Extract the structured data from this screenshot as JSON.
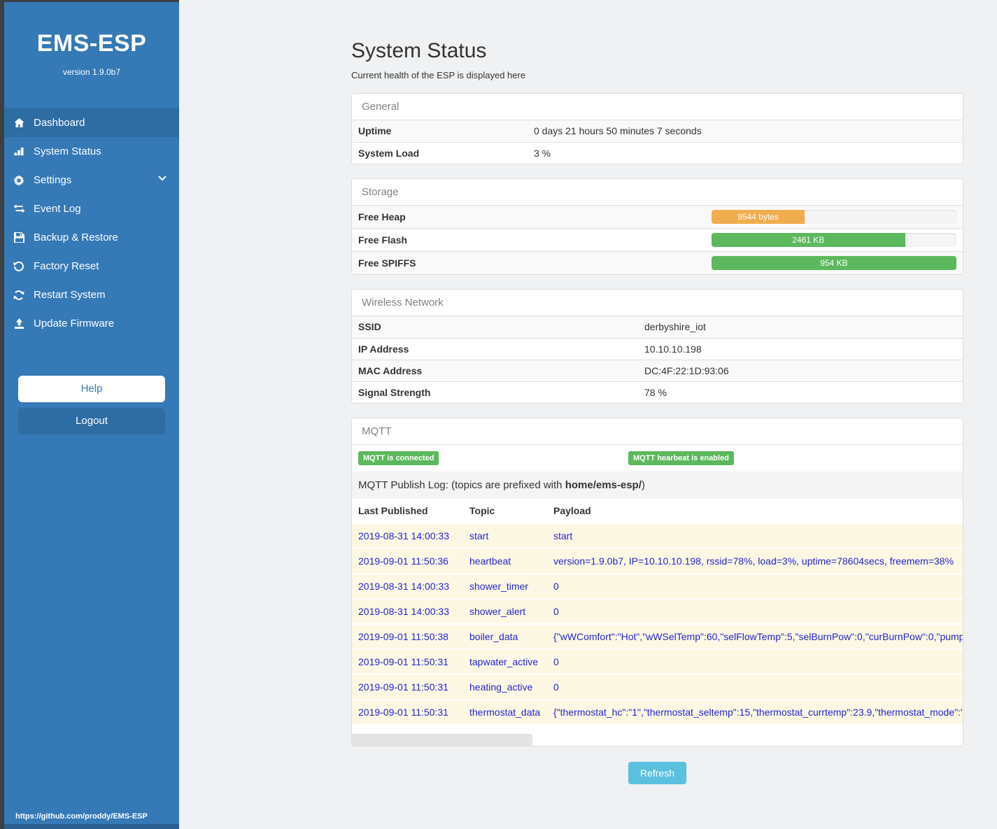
{
  "colors": {
    "sidebar_blue": "#3579b6",
    "active_item_blue": "#2d6da4",
    "green": "#5cb85c",
    "orange": "#f0ad4e",
    "refresh_blue": "#5bc0de",
    "log_row_cream": "#fcf8e3",
    "log_text_blue": "#2525cf"
  },
  "sidebar": {
    "brand": "EMS-ESP",
    "version": "version 1.9.0b7",
    "items": [
      {
        "label": "Dashboard",
        "icon": "home-icon",
        "active": true
      },
      {
        "label": "System Status",
        "icon": "system-status-icon",
        "active": false
      },
      {
        "label": "Settings",
        "icon": "gear-icon",
        "active": false,
        "has_chevron": true
      },
      {
        "label": "Event Log",
        "icon": "exchange-arrows-icon",
        "active": false
      },
      {
        "label": "Backup & Restore",
        "icon": "save-icon",
        "active": false
      },
      {
        "label": "Factory Reset",
        "icon": "rotate-left-icon",
        "active": false
      },
      {
        "label": "Restart System",
        "icon": "refresh-icon",
        "active": false
      },
      {
        "label": "Update Firmware",
        "icon": "upload-icon",
        "active": false
      }
    ],
    "help_label": "Help",
    "logout_label": "Logout",
    "footer_url": "https://github.com/proddy/EMS-ESP"
  },
  "header": {
    "title": "System Status",
    "subtitle": "Current health of the ESP is displayed here"
  },
  "general": {
    "title": "General",
    "rows": [
      {
        "label": "Uptime",
        "value": "0 days 21 hours 50 minutes 7 seconds"
      },
      {
        "label": "System Load",
        "value": "3 %"
      }
    ]
  },
  "storage": {
    "title": "Storage",
    "rows": [
      {
        "label": "Free Heap",
        "value": "9544 bytes",
        "percent": 38,
        "color": "#f0ad4e"
      },
      {
        "label": "Free Flash",
        "value": "2461 KB",
        "percent": 79,
        "color": "#5cb85c"
      },
      {
        "label": "Free SPIFFS",
        "value": "954 KB",
        "percent": 100,
        "color": "#5cb85c"
      }
    ]
  },
  "wireless": {
    "title": "Wireless Network",
    "rows": [
      {
        "label": "SSID",
        "value": "derbyshire_iot"
      },
      {
        "label": "IP Address",
        "value": "10.10.10.198"
      },
      {
        "label": "MAC Address",
        "value": "DC:4F:22:1D:93:06"
      },
      {
        "label": "Signal Strength",
        "value": "78 %"
      }
    ]
  },
  "mqtt": {
    "title": "MQTT",
    "badge_connected": "MQTT is connected",
    "badge_heartbeat": "MQTT hearbeat is enabled",
    "publish_log_text_before": "MQTT Publish Log: (topics are prefixed with ",
    "publish_log_bold": "home/ems-esp/",
    "publish_log_text_after": ")",
    "columns": {
      "time": "Last Published",
      "topic": "Topic",
      "payload": "Payload"
    },
    "log": [
      {
        "time": "2019-08-31 14:00:33",
        "topic": "start",
        "payload": "start"
      },
      {
        "time": "2019-09-01 11:50:36",
        "topic": "heartbeat",
        "payload": "version=1.9.0b7, IP=10.10.10.198, rssid=78%, load=3%, uptime=78604secs, freemem=38%"
      },
      {
        "time": "2019-08-31 14:00:33",
        "topic": "shower_timer",
        "payload": "0"
      },
      {
        "time": "2019-08-31 14:00:33",
        "topic": "shower_alert",
        "payload": "0"
      },
      {
        "time": "2019-09-01 11:50:38",
        "topic": "boiler_data",
        "payload": "{\"wWComfort\":\"Hot\",\"wWSelTemp\":60,\"selFlowTemp\":5,\"selBurnPow\":0,\"curBurnPow\":0,\"pump"
      },
      {
        "time": "2019-09-01 11:50:31",
        "topic": "tapwater_active",
        "payload": "0"
      },
      {
        "time": "2019-09-01 11:50:31",
        "topic": "heating_active",
        "payload": "0"
      },
      {
        "time": "2019-09-01 11:50:31",
        "topic": "thermostat_data",
        "payload": "{\"thermostat_hc\":\"1\",\"thermostat_seltemp\":15,\"thermostat_currtemp\":23.9,\"thermostat_mode\":\""
      }
    ]
  },
  "refresh_label": "Refresh"
}
